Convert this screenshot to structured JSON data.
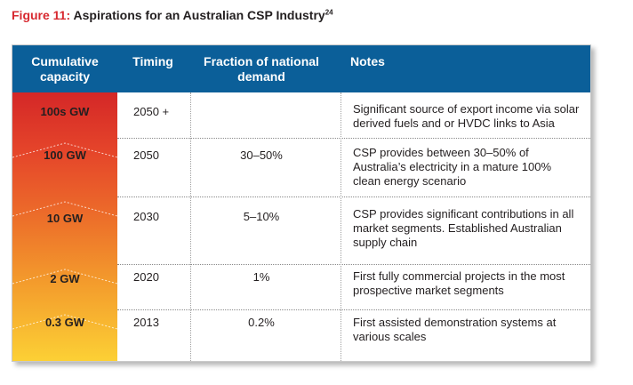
{
  "figure": {
    "label": "Figure 11:",
    "title": "Aspirations for an Australian CSP Industry",
    "footnote_ref": "24"
  },
  "table": {
    "headers": {
      "capacity": "Cumulative capacity",
      "timing": "Timing",
      "fraction": "Fraction of national demand",
      "notes": "Notes"
    },
    "rows": [
      {
        "capacity": "100s GW",
        "timing": "2050 +",
        "fraction": "",
        "notes": "Significant source of export income via solar derived fuels and or HVDC links to Asia"
      },
      {
        "capacity": "100 GW",
        "timing": "2050",
        "fraction": "30–50%",
        "notes": "CSP provides between 30–50% of Australia’s electricity in a mature 100% clean energy scenario"
      },
      {
        "capacity": "10 GW",
        "timing": "2030",
        "fraction": "5–10%",
        "notes": "CSP provides significant contributions in all market segments. Established Australian supply chain"
      },
      {
        "capacity": "2 GW",
        "timing": "2020",
        "fraction": "1%",
        "notes": "First fully commercial projects in the most prospective market segments"
      },
      {
        "capacity": "0.3 GW",
        "timing": "2013",
        "fraction": "0.2%",
        "notes": "First assisted demonstration systems at various scales"
      }
    ]
  },
  "colors": {
    "header_bg": "#0b5f99",
    "figure_label": "#d7282f",
    "gradient_top": "#d42727",
    "gradient_bottom": "#fcd035"
  }
}
